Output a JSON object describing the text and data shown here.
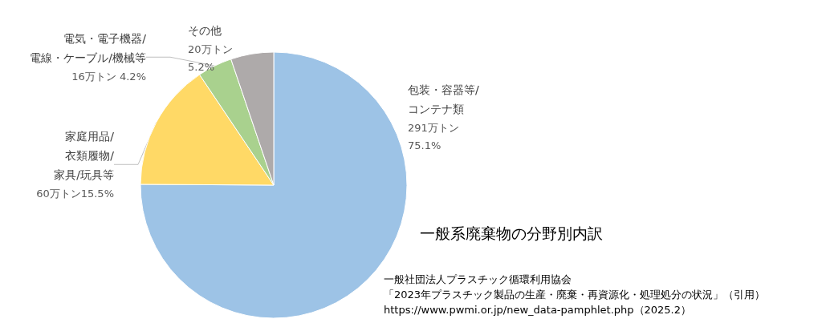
{
  "chart_data": {
    "type": "pie",
    "title": "一般系廃棄物の分野別内訳",
    "categories": [
      "包装・容器等/\nコンテナ類",
      "家庭用品/\n衣類履物/\n家具/玩具等",
      "電気・電子機器/\n電線・ケーブル/機械等",
      "その他"
    ],
    "values": [
      75.1,
      15.5,
      4.2,
      5.2
    ],
    "value_labels": [
      "291万トン\n75.1%",
      "60万トン15.5%",
      "16万トン 4.2%",
      "20万トン\n5.2%"
    ],
    "colors": [
      "#9dc3e6",
      "#ffd966",
      "#a9d18e",
      "#aeaaaa"
    ],
    "annotations": [
      "一般社団法人プラスチック循環利用協会",
      "「2023年プラスチック製品の生産・廃棄・再資源化・処理処分の状況」（引用）",
      "https://www.pwmi.or.jp/new_data-pamphlet.php（2025.2）"
    ],
    "legend": false
  }
}
